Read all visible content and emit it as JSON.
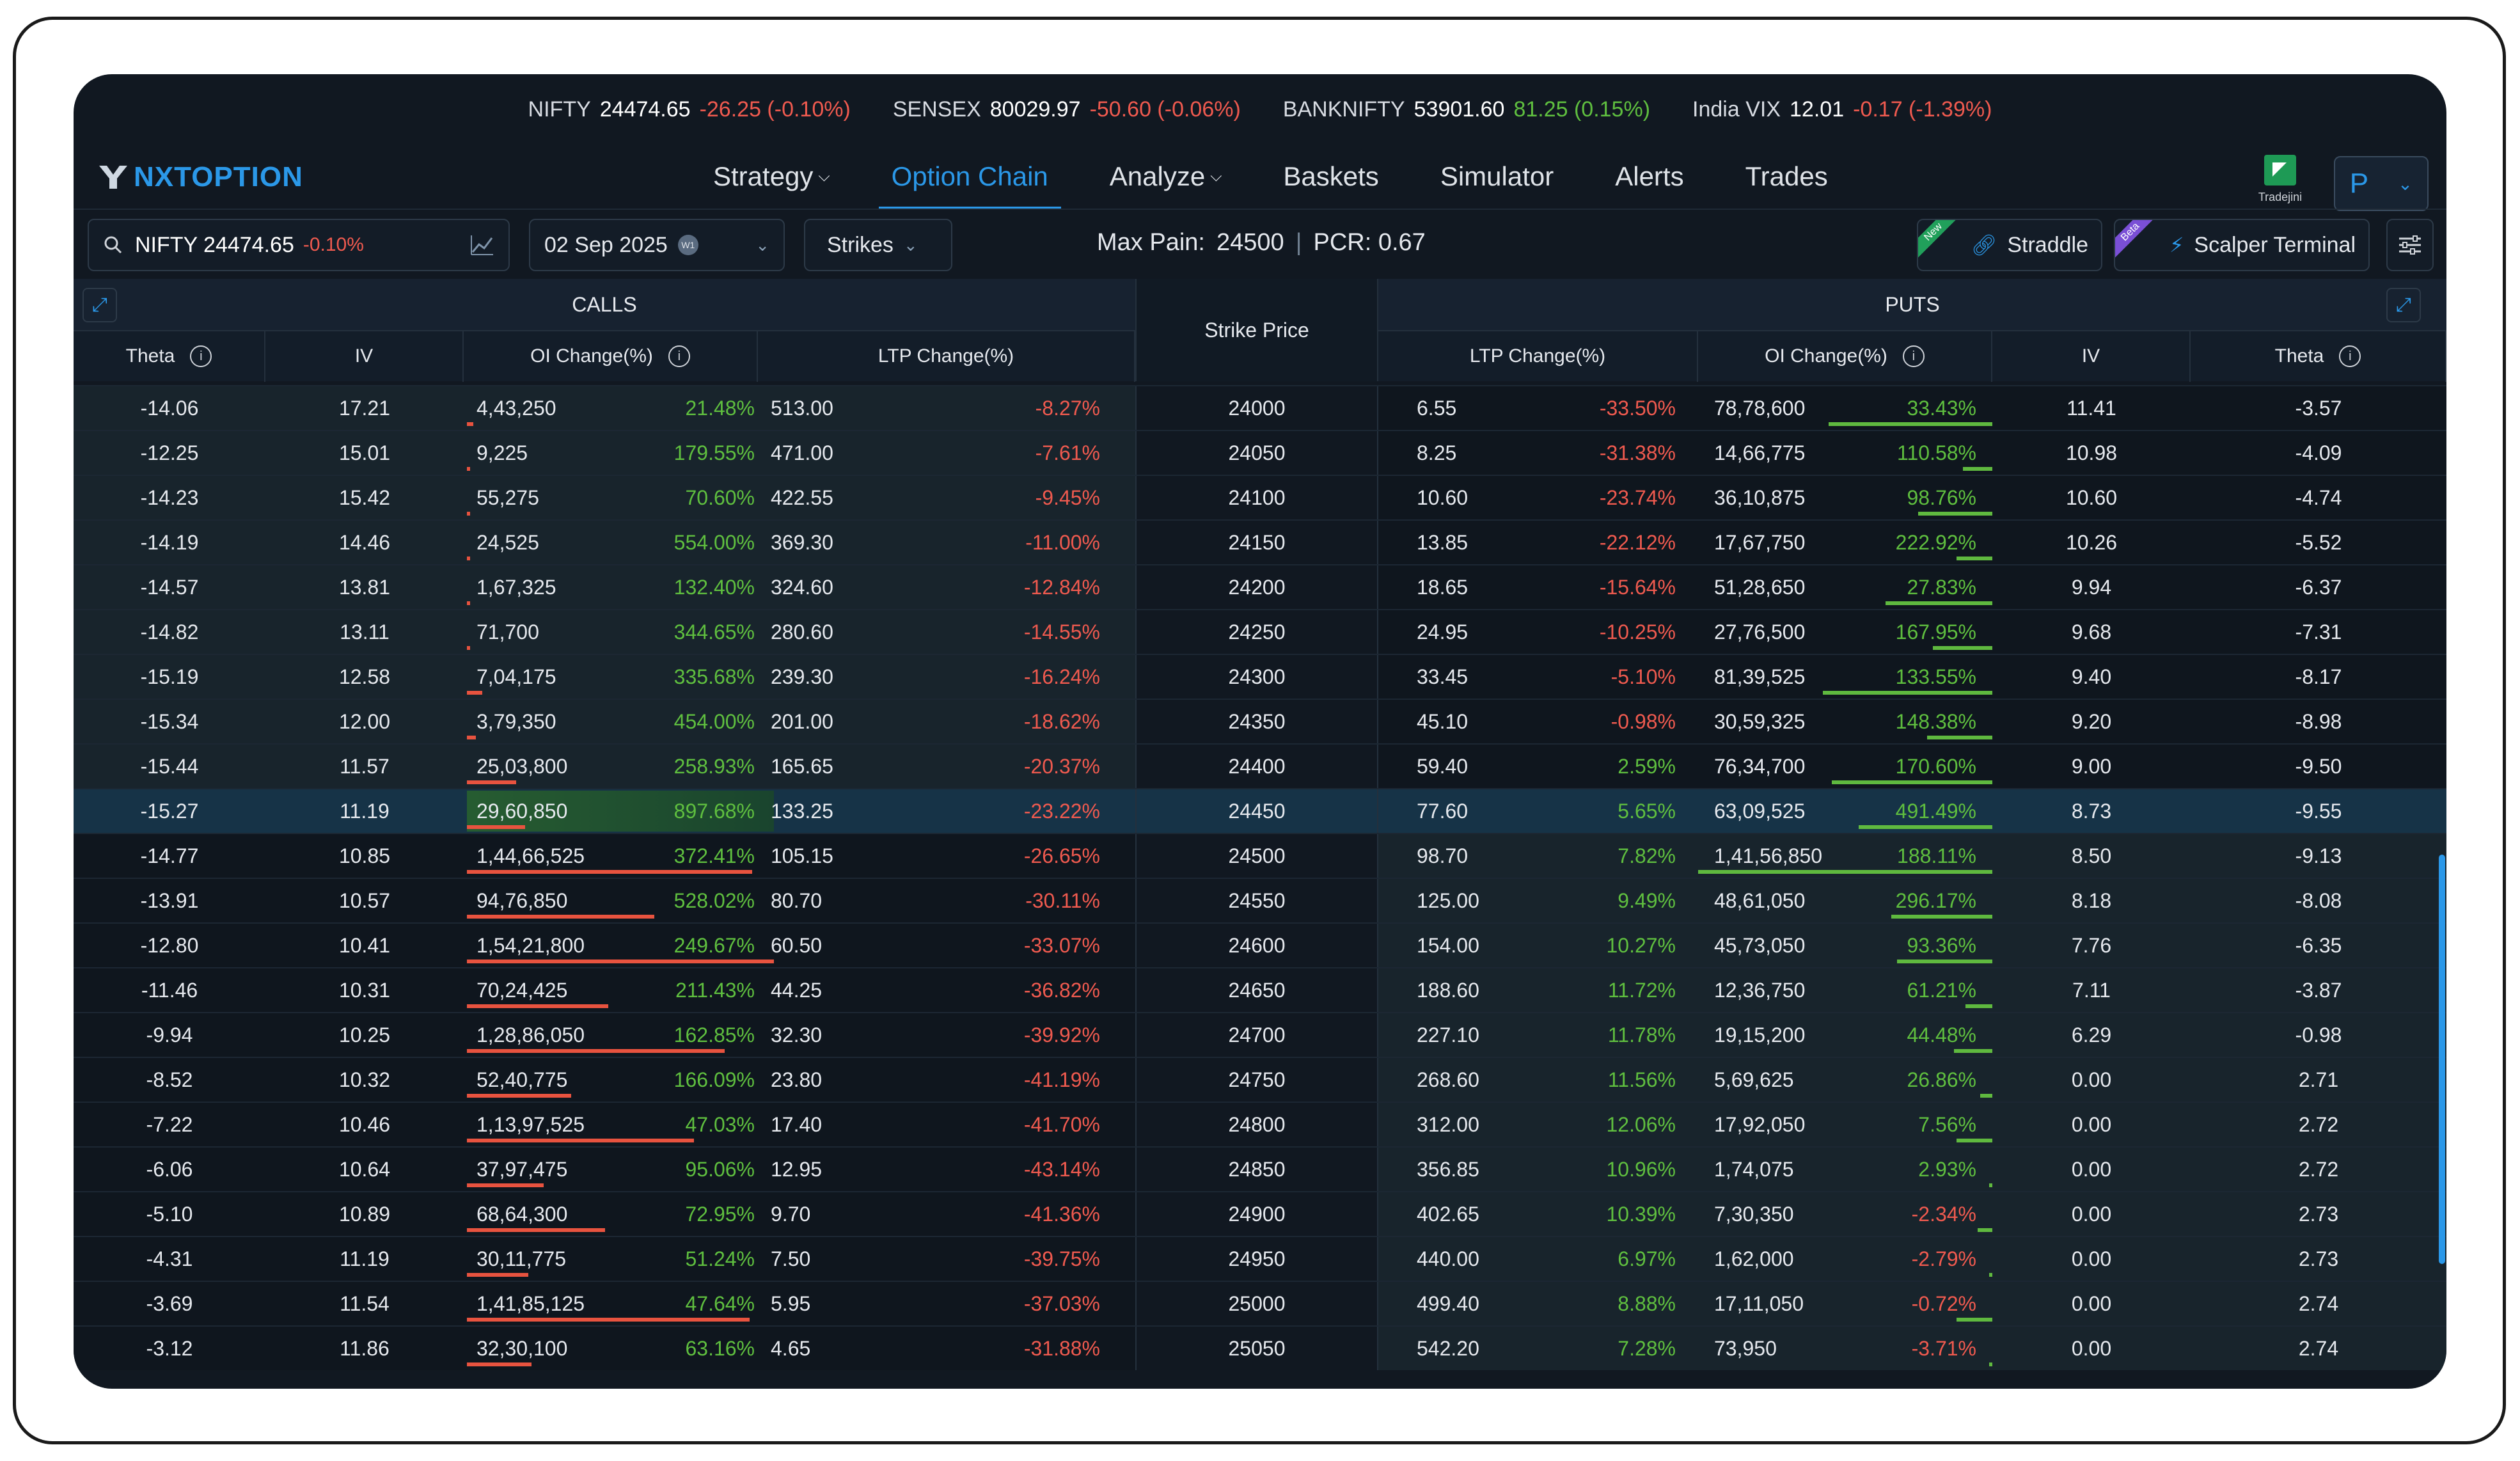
{
  "ticker": [
    {
      "name": "NIFTY",
      "value": "24474.65",
      "change": "-26.25 (-0.10%)",
      "dir": "red"
    },
    {
      "name": "SENSEX",
      "value": "80029.97",
      "change": "-50.60 (-0.06%)",
      "dir": "red"
    },
    {
      "name": "BANKNIFTY",
      "value": "53901.60",
      "change": "81.25 (0.15%)",
      "dir": "green"
    },
    {
      "name": "India VIX",
      "value": "12.01",
      "change": "-0.17 (-1.39%)",
      "dir": "red"
    }
  ],
  "brand": {
    "logo_text": "NXTOPTION",
    "accent": "#2b98e8"
  },
  "nav": [
    {
      "label": "Strategy",
      "dropdown": true,
      "active": false
    },
    {
      "label": "Option Chain",
      "dropdown": false,
      "active": true
    },
    {
      "label": "Analyze",
      "dropdown": true,
      "active": false
    },
    {
      "label": "Baskets",
      "dropdown": false,
      "active": false
    },
    {
      "label": "Simulator",
      "dropdown": false,
      "active": false
    },
    {
      "label": "Alerts",
      "dropdown": false,
      "active": false
    },
    {
      "label": "Trades",
      "dropdown": false,
      "active": false
    }
  ],
  "broker": {
    "name": "Tradejini"
  },
  "user": {
    "initial": "P"
  },
  "toolbar": {
    "symbol": "NIFTY 24474.65",
    "symbol_change": "-0.10%",
    "expiry": "02 Sep 2025",
    "expiry_badge": "W1",
    "strikes_label": "Strikes",
    "max_pain_label": "Max Pain:",
    "max_pain_value": "24500",
    "pcr": "PCR: 0.67",
    "straddle_label": "Straddle",
    "straddle_badge": "New",
    "scalper_label": "Scalper Terminal",
    "scalper_badge": "Beta"
  },
  "table": {
    "calls_title": "CALLS",
    "puts_title": "PUTS",
    "strike_header": "Strike Price",
    "call_headers": [
      "Theta",
      "IV",
      "OI Change(%)",
      "LTP Change(%)"
    ],
    "put_headers": [
      "LTP Change(%)",
      "OI Change(%)",
      "IV",
      "Theta"
    ],
    "atm_strike": "24450",
    "rows": [
      {
        "strike": "24000",
        "c_theta": "-14.06",
        "c_iv": "17.21",
        "c_oi": "4,43,250",
        "c_oi_pct": "21.48%",
        "c_ltp": "513.00",
        "c_ltp_pct": "-8.27%",
        "p_ltp": "6.55",
        "p_ltp_pct": "-33.50%",
        "p_oi": "78,78,600",
        "p_oi_pct": "33.43%",
        "p_iv": "11.41",
        "p_theta": "-3.57",
        "c_bar": 0.02,
        "p_bar": 0.55
      },
      {
        "strike": "24050",
        "c_theta": "-12.25",
        "c_iv": "15.01",
        "c_oi": "9,225",
        "c_oi_pct": "179.55%",
        "c_ltp": "471.00",
        "c_ltp_pct": "-7.61%",
        "p_ltp": "8.25",
        "p_ltp_pct": "-31.38%",
        "p_oi": "14,66,775",
        "p_oi_pct": "110.58%",
        "p_iv": "10.98",
        "p_theta": "-4.09",
        "c_bar": 0.01,
        "p_bar": 0.1
      },
      {
        "strike": "24100",
        "c_theta": "-14.23",
        "c_iv": "15.42",
        "c_oi": "55,275",
        "c_oi_pct": "70.60%",
        "c_ltp": "422.55",
        "c_ltp_pct": "-9.45%",
        "p_ltp": "10.60",
        "p_ltp_pct": "-23.74%",
        "p_oi": "36,10,875",
        "p_oi_pct": "98.76%",
        "p_iv": "10.60",
        "p_theta": "-4.74",
        "c_bar": 0.01,
        "p_bar": 0.25
      },
      {
        "strike": "24150",
        "c_theta": "-14.19",
        "c_iv": "14.46",
        "c_oi": "24,525",
        "c_oi_pct": "554.00%",
        "c_ltp": "369.30",
        "c_ltp_pct": "-11.00%",
        "p_ltp": "13.85",
        "p_ltp_pct": "-22.12%",
        "p_oi": "17,67,750",
        "p_oi_pct": "222.92%",
        "p_iv": "10.26",
        "p_theta": "-5.52",
        "c_bar": 0.01,
        "p_bar": 0.12
      },
      {
        "strike": "24200",
        "c_theta": "-14.57",
        "c_iv": "13.81",
        "c_oi": "1,67,325",
        "c_oi_pct": "132.40%",
        "c_ltp": "324.60",
        "c_ltp_pct": "-12.84%",
        "p_ltp": "18.65",
        "p_ltp_pct": "-15.64%",
        "p_oi": "51,28,650",
        "p_oi_pct": "27.83%",
        "p_iv": "9.94",
        "p_theta": "-6.37",
        "c_bar": 0.01,
        "p_bar": 0.36
      },
      {
        "strike": "24250",
        "c_theta": "-14.82",
        "c_iv": "13.11",
        "c_oi": "71,700",
        "c_oi_pct": "344.65%",
        "c_ltp": "280.60",
        "c_ltp_pct": "-14.55%",
        "p_ltp": "24.95",
        "p_ltp_pct": "-10.25%",
        "p_oi": "27,76,500",
        "p_oi_pct": "167.95%",
        "p_iv": "9.68",
        "p_theta": "-7.31",
        "c_bar": 0.01,
        "p_bar": 0.2
      },
      {
        "strike": "24300",
        "c_theta": "-15.19",
        "c_iv": "12.58",
        "c_oi": "7,04,175",
        "c_oi_pct": "335.68%",
        "c_ltp": "239.30",
        "c_ltp_pct": "-16.24%",
        "p_ltp": "33.45",
        "p_ltp_pct": "-5.10%",
        "p_oi": "81,39,525",
        "p_oi_pct": "133.55%",
        "p_iv": "9.40",
        "p_theta": "-8.17",
        "c_bar": 0.05,
        "p_bar": 0.57
      },
      {
        "strike": "24350",
        "c_theta": "-15.34",
        "c_iv": "12.00",
        "c_oi": "3,79,350",
        "c_oi_pct": "454.00%",
        "c_ltp": "201.00",
        "c_ltp_pct": "-18.62%",
        "p_ltp": "45.10",
        "p_ltp_pct": "-0.98%",
        "p_oi": "30,59,325",
        "p_oi_pct": "148.38%",
        "p_iv": "9.20",
        "p_theta": "-8.98",
        "c_bar": 0.03,
        "p_bar": 0.22
      },
      {
        "strike": "24400",
        "c_theta": "-15.44",
        "c_iv": "11.57",
        "c_oi": "25,03,800",
        "c_oi_pct": "258.93%",
        "c_ltp": "165.65",
        "c_ltp_pct": "-20.37%",
        "p_ltp": "59.40",
        "p_ltp_pct": "2.59%",
        "p_oi": "76,34,700",
        "p_oi_pct": "170.60%",
        "p_iv": "9.00",
        "p_theta": "-9.50",
        "c_bar": 0.16,
        "p_bar": 0.54
      },
      {
        "strike": "24450",
        "c_theta": "-15.27",
        "c_iv": "11.19",
        "c_oi": "29,60,850",
        "c_oi_pct": "897.68%",
        "c_ltp": "133.25",
        "c_ltp_pct": "-23.22%",
        "p_ltp": "77.60",
        "p_ltp_pct": "5.65%",
        "p_oi": "63,09,525",
        "p_oi_pct": "491.49%",
        "p_iv": "8.73",
        "p_theta": "-9.55",
        "c_bar": 0.19,
        "p_bar": 0.45
      },
      {
        "strike": "24500",
        "c_theta": "-14.77",
        "c_iv": "10.85",
        "c_oi": "1,44,66,525",
        "c_oi_pct": "372.41%",
        "c_ltp": "105.15",
        "c_ltp_pct": "-26.65%",
        "p_ltp": "98.70",
        "p_ltp_pct": "7.82%",
        "p_oi": "1,41,56,850",
        "p_oi_pct": "188.11%",
        "p_iv": "8.50",
        "p_theta": "-9.13",
        "c_bar": 0.93,
        "p_bar": 0.99
      },
      {
        "strike": "24550",
        "c_theta": "-13.91",
        "c_iv": "10.57",
        "c_oi": "94,76,850",
        "c_oi_pct": "528.02%",
        "c_ltp": "80.70",
        "c_ltp_pct": "-30.11%",
        "p_ltp": "125.00",
        "p_ltp_pct": "9.49%",
        "p_oi": "48,61,050",
        "p_oi_pct": "296.17%",
        "p_iv": "8.18",
        "p_theta": "-8.08",
        "c_bar": 0.61,
        "p_bar": 0.34
      },
      {
        "strike": "24600",
        "c_theta": "-12.80",
        "c_iv": "10.41",
        "c_oi": "1,54,21,800",
        "c_oi_pct": "249.67%",
        "c_ltp": "60.50",
        "c_ltp_pct": "-33.07%",
        "p_ltp": "154.00",
        "p_ltp_pct": "10.27%",
        "p_oi": "45,73,050",
        "p_oi_pct": "93.36%",
        "p_iv": "7.76",
        "p_theta": "-6.35",
        "c_bar": 1.0,
        "p_bar": 0.32
      },
      {
        "strike": "24650",
        "c_theta": "-11.46",
        "c_iv": "10.31",
        "c_oi": "70,24,425",
        "c_oi_pct": "211.43%",
        "c_ltp": "44.25",
        "c_ltp_pct": "-36.82%",
        "p_ltp": "188.60",
        "p_ltp_pct": "11.72%",
        "p_oi": "12,36,750",
        "p_oi_pct": "61.21%",
        "p_iv": "7.11",
        "p_theta": "-3.87",
        "c_bar": 0.46,
        "p_bar": 0.09
      },
      {
        "strike": "24700",
        "c_theta": "-9.94",
        "c_iv": "10.25",
        "c_oi": "1,28,86,050",
        "c_oi_pct": "162.85%",
        "c_ltp": "32.30",
        "c_ltp_pct": "-39.92%",
        "p_ltp": "227.10",
        "p_ltp_pct": "11.78%",
        "p_oi": "19,15,200",
        "p_oi_pct": "44.48%",
        "p_iv": "6.29",
        "p_theta": "-0.98",
        "c_bar": 0.84,
        "p_bar": 0.13
      },
      {
        "strike": "24750",
        "c_theta": "-8.52",
        "c_iv": "10.32",
        "c_oi": "52,40,775",
        "c_oi_pct": "166.09%",
        "c_ltp": "23.80",
        "c_ltp_pct": "-41.19%",
        "p_ltp": "268.60",
        "p_ltp_pct": "11.56%",
        "p_oi": "5,69,625",
        "p_oi_pct": "26.86%",
        "p_iv": "0.00",
        "p_theta": "2.71",
        "c_bar": 0.34,
        "p_bar": 0.04
      },
      {
        "strike": "24800",
        "c_theta": "-7.22",
        "c_iv": "10.46",
        "c_oi": "1,13,97,525",
        "c_oi_pct": "47.03%",
        "c_ltp": "17.40",
        "c_ltp_pct": "-41.70%",
        "p_ltp": "312.00",
        "p_ltp_pct": "12.06%",
        "p_oi": "17,92,050",
        "p_oi_pct": "7.56%",
        "p_iv": "0.00",
        "p_theta": "2.72",
        "c_bar": 0.74,
        "p_bar": 0.12
      },
      {
        "strike": "24850",
        "c_theta": "-6.06",
        "c_iv": "10.64",
        "c_oi": "37,97,475",
        "c_oi_pct": "95.06%",
        "c_ltp": "12.95",
        "c_ltp_pct": "-43.14%",
        "p_ltp": "356.85",
        "p_ltp_pct": "10.96%",
        "p_oi": "1,74,075",
        "p_oi_pct": "2.93%",
        "p_iv": "0.00",
        "p_theta": "2.72",
        "c_bar": 0.25,
        "p_bar": 0.01
      },
      {
        "strike": "24900",
        "c_theta": "-5.10",
        "c_iv": "10.89",
        "c_oi": "68,64,300",
        "c_oi_pct": "72.95%",
        "c_ltp": "9.70",
        "c_ltp_pct": "-41.36%",
        "p_ltp": "402.65",
        "p_ltp_pct": "10.39%",
        "p_oi": "7,30,350",
        "p_oi_pct": "-2.34%",
        "p_iv": "0.00",
        "p_theta": "2.73",
        "c_bar": 0.45,
        "p_bar": 0.05
      },
      {
        "strike": "24950",
        "c_theta": "-4.31",
        "c_iv": "11.19",
        "c_oi": "30,11,775",
        "c_oi_pct": "51.24%",
        "c_ltp": "7.50",
        "c_ltp_pct": "-39.75%",
        "p_ltp": "440.00",
        "p_ltp_pct": "6.97%",
        "p_oi": "1,62,000",
        "p_oi_pct": "-2.79%",
        "p_iv": "0.00",
        "p_theta": "2.73",
        "c_bar": 0.2,
        "p_bar": 0.01
      },
      {
        "strike": "25000",
        "c_theta": "-3.69",
        "c_iv": "11.54",
        "c_oi": "1,41,85,125",
        "c_oi_pct": "47.64%",
        "c_ltp": "5.95",
        "c_ltp_pct": "-37.03%",
        "p_ltp": "499.40",
        "p_ltp_pct": "8.88%",
        "p_oi": "17,11,050",
        "p_oi_pct": "-0.72%",
        "p_iv": "0.00",
        "p_theta": "2.74",
        "c_bar": 0.92,
        "p_bar": 0.12
      },
      {
        "strike": "25050",
        "c_theta": "-3.12",
        "c_iv": "11.86",
        "c_oi": "32,30,100",
        "c_oi_pct": "63.16%",
        "c_ltp": "4.65",
        "c_ltp_pct": "-31.88%",
        "p_ltp": "542.20",
        "p_ltp_pct": "7.28%",
        "p_oi": "73,950",
        "p_oi_pct": "-3.71%",
        "p_iv": "0.00",
        "p_theta": "2.74",
        "c_bar": 0.21,
        "p_bar": 0.01
      }
    ]
  },
  "colors": {
    "positive": "#5fbf3f",
    "negative": "#ef5a4f",
    "itm_call_bg": "#18242c",
    "itm_put_bg": "#18242c",
    "atm_bg": "#163347"
  }
}
